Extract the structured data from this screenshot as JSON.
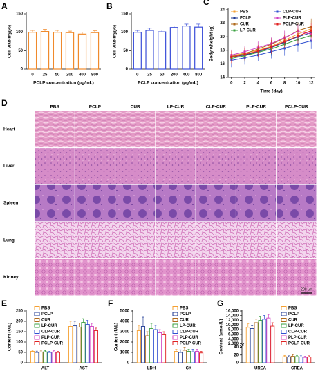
{
  "chart_data": [
    {
      "type": "bar",
      "panel": "A",
      "categories": [
        "0",
        "25",
        "50",
        "200",
        "400",
        "800"
      ],
      "values": [
        100,
        102,
        100,
        99,
        95,
        99
      ],
      "errors": [
        5,
        6,
        5,
        4,
        5,
        5
      ],
      "color": "#f08a2c",
      "ylim": [
        0,
        150
      ],
      "yticks": [
        0,
        50,
        100,
        150
      ],
      "ylabel": "Cell viability(%)",
      "xlabel": "PCLP concentration (μg/mL)"
    },
    {
      "type": "bar",
      "panel": "B",
      "categories": [
        "0",
        "25",
        "50",
        "200",
        "400",
        "800"
      ],
      "values": [
        100,
        105,
        101,
        113,
        117,
        114
      ],
      "errors": [
        5,
        6,
        5,
        4,
        5,
        8
      ],
      "color": "#3b4fd8",
      "ylim": [
        0,
        150
      ],
      "yticks": [
        0,
        50,
        100,
        150
      ],
      "ylabel": "Cell viability(%)",
      "xlabel": "PCLP concentration (μg/mL)"
    },
    {
      "type": "line",
      "panel": "C",
      "x": [
        0,
        2,
        4,
        6,
        8,
        10,
        12
      ],
      "xlim": [
        -0.5,
        12.5
      ],
      "xticks": [
        0,
        2,
        4,
        6,
        8,
        10,
        12
      ],
      "ylim": [
        14,
        24
      ],
      "yticks": [
        14,
        16,
        18,
        20,
        22,
        24
      ],
      "xlabel": "Time (day)",
      "ylabel": "Body wheight (g)",
      "legend": "upper left",
      "series": [
        {
          "name": "PBS",
          "color": "#f5a031",
          "values": [
            17.2,
            17.6,
            18.0,
            18.6,
            19.5,
            20.4,
            21.2
          ],
          "errors": [
            0.8,
            0.9,
            0.8,
            0.9,
            1.0,
            1.0,
            1.1
          ]
        },
        {
          "name": "PCLP",
          "color": "#1f3a93",
          "values": [
            17.0,
            17.3,
            17.8,
            18.4,
            19.2,
            20.0,
            20.6
          ],
          "errors": [
            0.9,
            0.8,
            0.9,
            1.0,
            1.0,
            1.1,
            1.0
          ]
        },
        {
          "name": "CUR",
          "color": "#b06a1c",
          "values": [
            17.1,
            17.5,
            18.2,
            18.9,
            19.8,
            20.9,
            21.5
          ],
          "errors": [
            0.8,
            0.9,
            1.0,
            0.9,
            1.0,
            1.1,
            1.2
          ]
        },
        {
          "name": "LP-CUR",
          "color": "#3aa040",
          "values": [
            16.8,
            17.2,
            17.7,
            18.2,
            18.9,
            19.6,
            20.2
          ],
          "errors": [
            0.9,
            0.9,
            0.8,
            1.0,
            1.0,
            1.0,
            1.1
          ]
        },
        {
          "name": "CLP-CUR",
          "color": "#3050d0",
          "values": [
            16.5,
            16.9,
            17.3,
            17.8,
            18.3,
            18.9,
            19.4
          ],
          "errors": [
            1.0,
            1.0,
            0.9,
            1.0,
            1.1,
            1.1,
            1.2
          ]
        },
        {
          "name": "PLP-CUR",
          "color": "#d040c0",
          "values": [
            17.3,
            17.8,
            18.4,
            19.0,
            19.9,
            20.8,
            20.4
          ],
          "errors": [
            0.8,
            0.8,
            0.9,
            0.9,
            1.0,
            1.0,
            1.1
          ]
        },
        {
          "name": "PCLP-CUR",
          "color": "#e02020",
          "values": [
            17.0,
            17.4,
            17.9,
            18.5,
            19.3,
            20.1,
            20.9
          ],
          "errors": [
            0.9,
            0.9,
            0.9,
            1.0,
            1.0,
            1.1,
            1.1
          ]
        }
      ]
    },
    {
      "type": "grouped_bar",
      "panel": "E",
      "categories": [
        "ALT",
        "AST"
      ],
      "ylim": [
        0,
        250
      ],
      "yticks": [
        0,
        50,
        100,
        150,
        200,
        250
      ],
      "ylabel": "Content (U/L)",
      "legend": "upper left",
      "series": [
        {
          "name": "PBS",
          "color": "#f5a031",
          "values": [
            55,
            175
          ],
          "errors": [
            5,
            25
          ]
        },
        {
          "name": "PCLP",
          "color": "#1f3a93",
          "values": [
            50,
            178
          ],
          "errors": [
            6,
            22
          ]
        },
        {
          "name": "CUR",
          "color": "#b06a1c",
          "values": [
            52,
            172
          ],
          "errors": [
            5,
            20
          ]
        },
        {
          "name": "LP-CUR",
          "color": "#3aa040",
          "values": [
            53,
            195
          ],
          "errors": [
            6,
            18
          ]
        },
        {
          "name": "CLP-CUR",
          "color": "#3050d0",
          "values": [
            50,
            185
          ],
          "errors": [
            5,
            20
          ]
        },
        {
          "name": "PLP-CUR",
          "color": "#d040c0",
          "values": [
            52,
            175
          ],
          "errors": [
            6,
            15
          ]
        },
        {
          "name": "PCLP-CUR",
          "color": "#e02020",
          "values": [
            50,
            155
          ],
          "errors": [
            5,
            12
          ]
        }
      ]
    },
    {
      "type": "grouped_bar",
      "panel": "F",
      "categories": [
        "LDH",
        "CK"
      ],
      "ylim": [
        0,
        5000
      ],
      "yticks": [
        0,
        1000,
        2000,
        3000,
        4000,
        5000
      ],
      "ylabel": "Content (U/L)",
      "legend": "upper right",
      "series": [
        {
          "name": "PBS",
          "color": "#f5a031",
          "values": [
            3100,
            1100
          ],
          "errors": [
            500,
            200
          ]
        },
        {
          "name": "PCLP",
          "color": "#1f3a93",
          "values": [
            3500,
            1000
          ],
          "errors": [
            900,
            250
          ]
        },
        {
          "name": "CUR",
          "color": "#b06a1c",
          "values": [
            2600,
            1200
          ],
          "errors": [
            400,
            300
          ]
        },
        {
          "name": "LP-CUR",
          "color": "#3aa040",
          "values": [
            3300,
            1100
          ],
          "errors": [
            500,
            200
          ]
        },
        {
          "name": "CLP-CUR",
          "color": "#3050d0",
          "values": [
            3200,
            1050
          ],
          "errors": [
            400,
            250
          ]
        },
        {
          "name": "PLP-CUR",
          "color": "#d040c0",
          "values": [
            2900,
            1100
          ],
          "errors": [
            300,
            200
          ]
        },
        {
          "name": "PCLP-CUR",
          "color": "#e02020",
          "values": [
            2700,
            950
          ],
          "errors": [
            300,
            150
          ]
        }
      ]
    },
    {
      "type": "grouped_bar",
      "panel": "G",
      "categories": [
        "UREA",
        "CREA"
      ],
      "ylim": [
        0,
        16000
      ],
      "ybreak": [
        40,
        2000
      ],
      "yticks": [
        0,
        20,
        40,
        {
          "value": 2000,
          "label": "2,000"
        },
        {
          "value": 4000,
          "label": "4,000"
        },
        {
          "value": 6000,
          "label": "6,000"
        },
        {
          "value": 8000,
          "label": "8,000"
        },
        {
          "value": 10000,
          "label": "10,000"
        },
        {
          "value": 12000,
          "label": "12,000"
        },
        {
          "value": 14000,
          "label": "14,000"
        },
        {
          "value": 16000,
          "label": "16,000"
        }
      ],
      "ylabel": "Content (μmol/L)",
      "legend": "upper right",
      "series": [
        {
          "name": "PBS",
          "color": "#f5a031",
          "values": [
            9000,
            16
          ],
          "errors": [
            1500,
            3
          ]
        },
        {
          "name": "PCLP",
          "color": "#1f3a93",
          "values": [
            8500,
            15
          ],
          "errors": [
            1200,
            3
          ]
        },
        {
          "name": "CUR",
          "color": "#b06a1c",
          "values": [
            11000,
            17
          ],
          "errors": [
            1500,
            4
          ]
        },
        {
          "name": "LP-CUR",
          "color": "#3aa040",
          "values": [
            12000,
            16
          ],
          "errors": [
            1500,
            3
          ]
        },
        {
          "name": "CLP-CUR",
          "color": "#3050d0",
          "values": [
            12500,
            15
          ],
          "errors": [
            1600,
            3
          ]
        },
        {
          "name": "PLP-CUR",
          "color": "#d040c0",
          "values": [
            13000,
            14
          ],
          "errors": [
            1500,
            3
          ]
        },
        {
          "name": "PCLP-CUR",
          "color": "#e02020",
          "values": [
            9500,
            15
          ],
          "errors": [
            1500,
            3
          ]
        }
      ]
    }
  ],
  "histology": {
    "panel": "D",
    "columns": [
      "PBS",
      "PCLP",
      "CUR",
      "LP-CUR",
      "CLP-CUR",
      "PLP-CUR",
      "PCLP-CUR"
    ],
    "rows": [
      "Heart",
      "Liver",
      "Spleen",
      "Lung",
      "Kidney"
    ],
    "scale_bar": "200 μm"
  }
}
